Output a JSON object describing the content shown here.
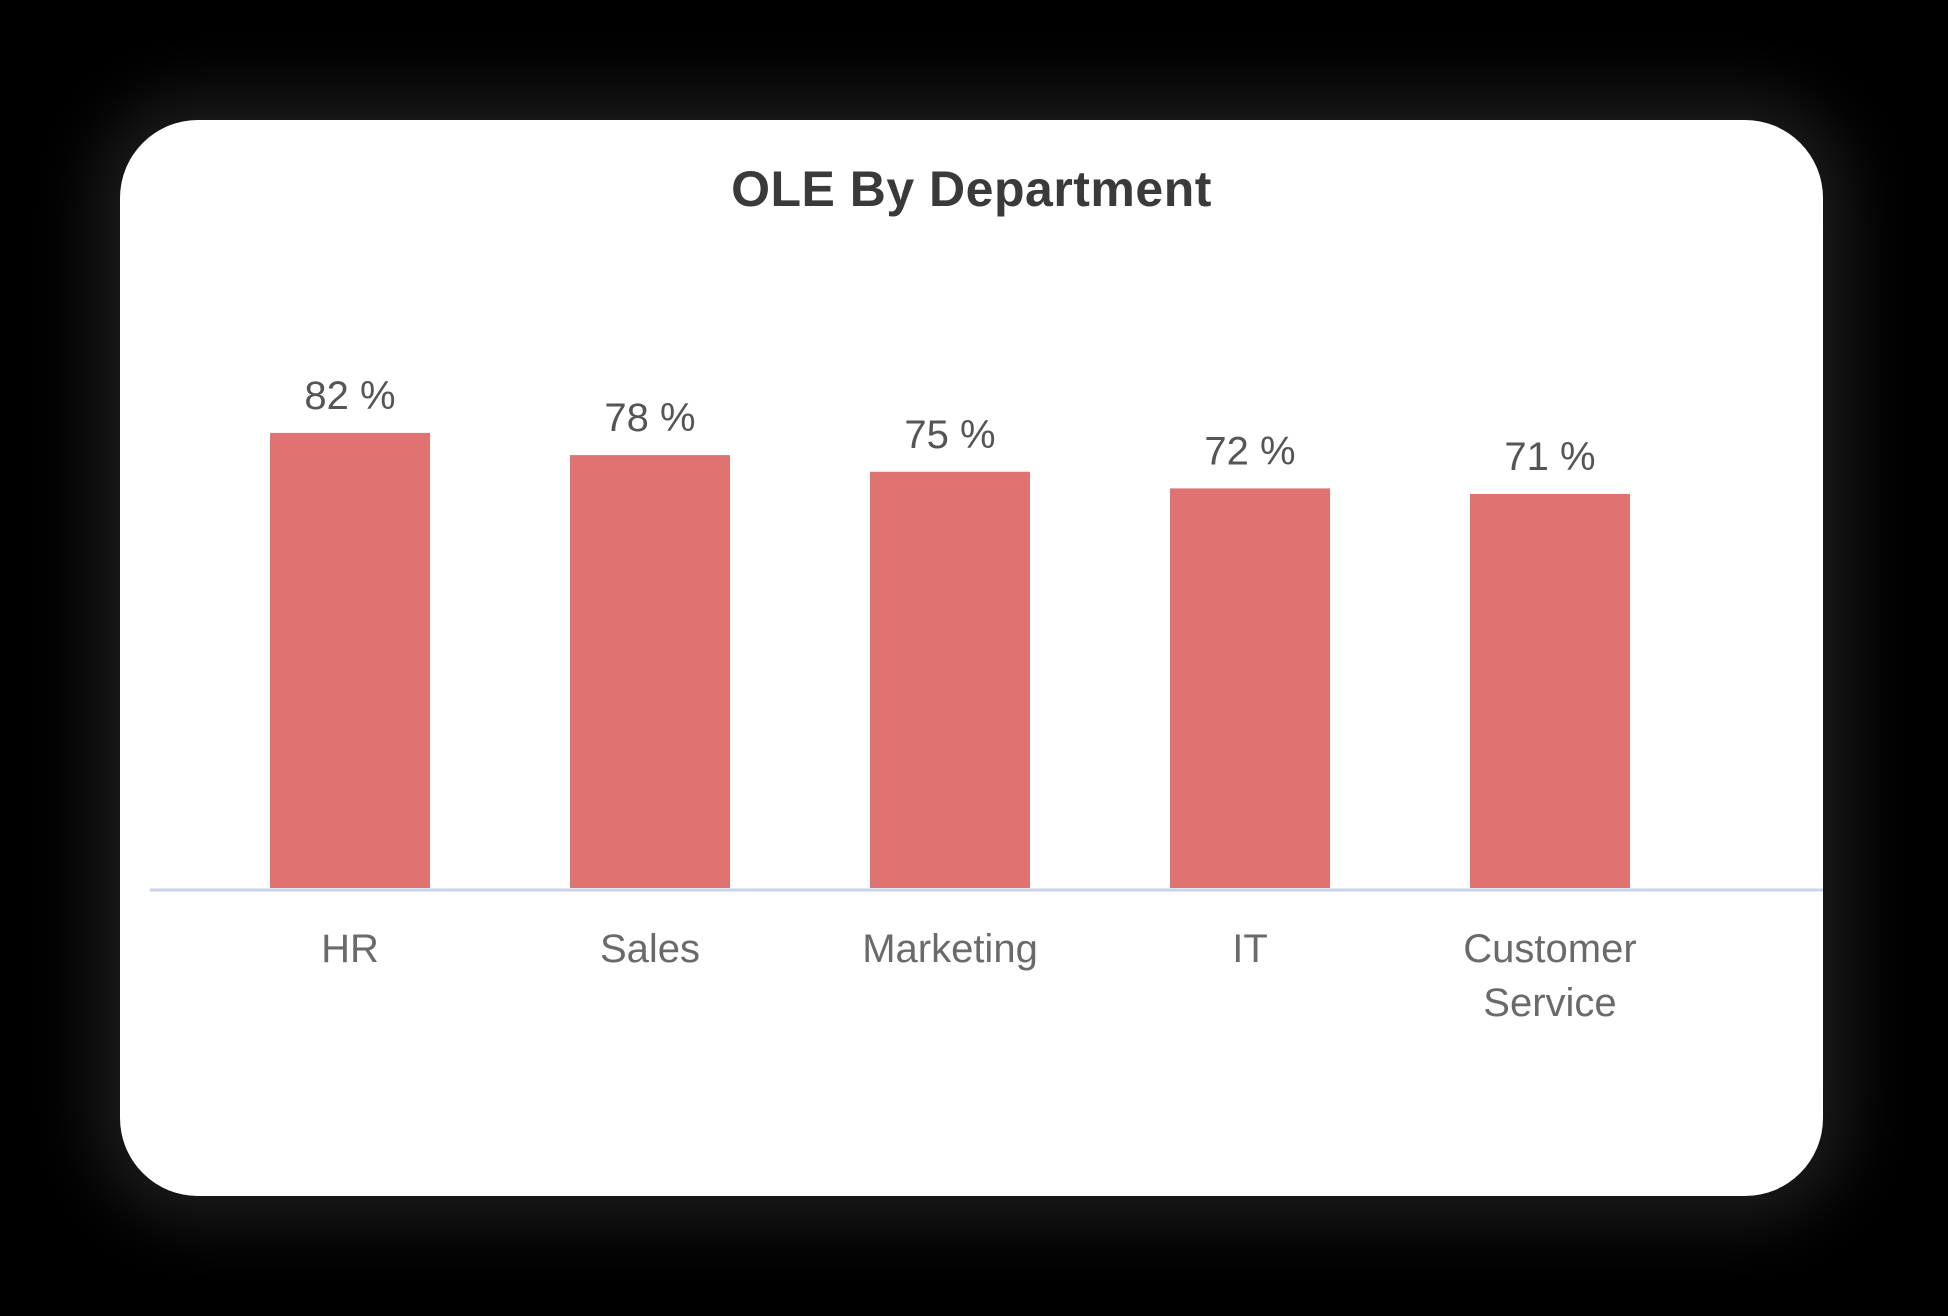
{
  "colors": {
    "bar": "#e07371",
    "axis": "#c9d3ee",
    "card": "#ffffff",
    "title": "#3a3a3a"
  },
  "chart_data": {
    "type": "bar",
    "title": "OLE By Department",
    "xlabel": "",
    "ylabel": "",
    "ylim": [
      0,
      100
    ],
    "grid": false,
    "legend": "none",
    "categories": [
      "HR",
      "Sales",
      "Marketing",
      "IT",
      "Customer Service"
    ],
    "category_lines": [
      [
        "HR"
      ],
      [
        "Sales"
      ],
      [
        "Marketing"
      ],
      [
        "IT"
      ],
      [
        "Customer",
        "Service"
      ]
    ],
    "values": [
      82,
      78,
      75,
      72,
      71
    ],
    "value_labels": [
      "82 %",
      "78 %",
      "75 %",
      "72 %",
      "71 %"
    ]
  }
}
